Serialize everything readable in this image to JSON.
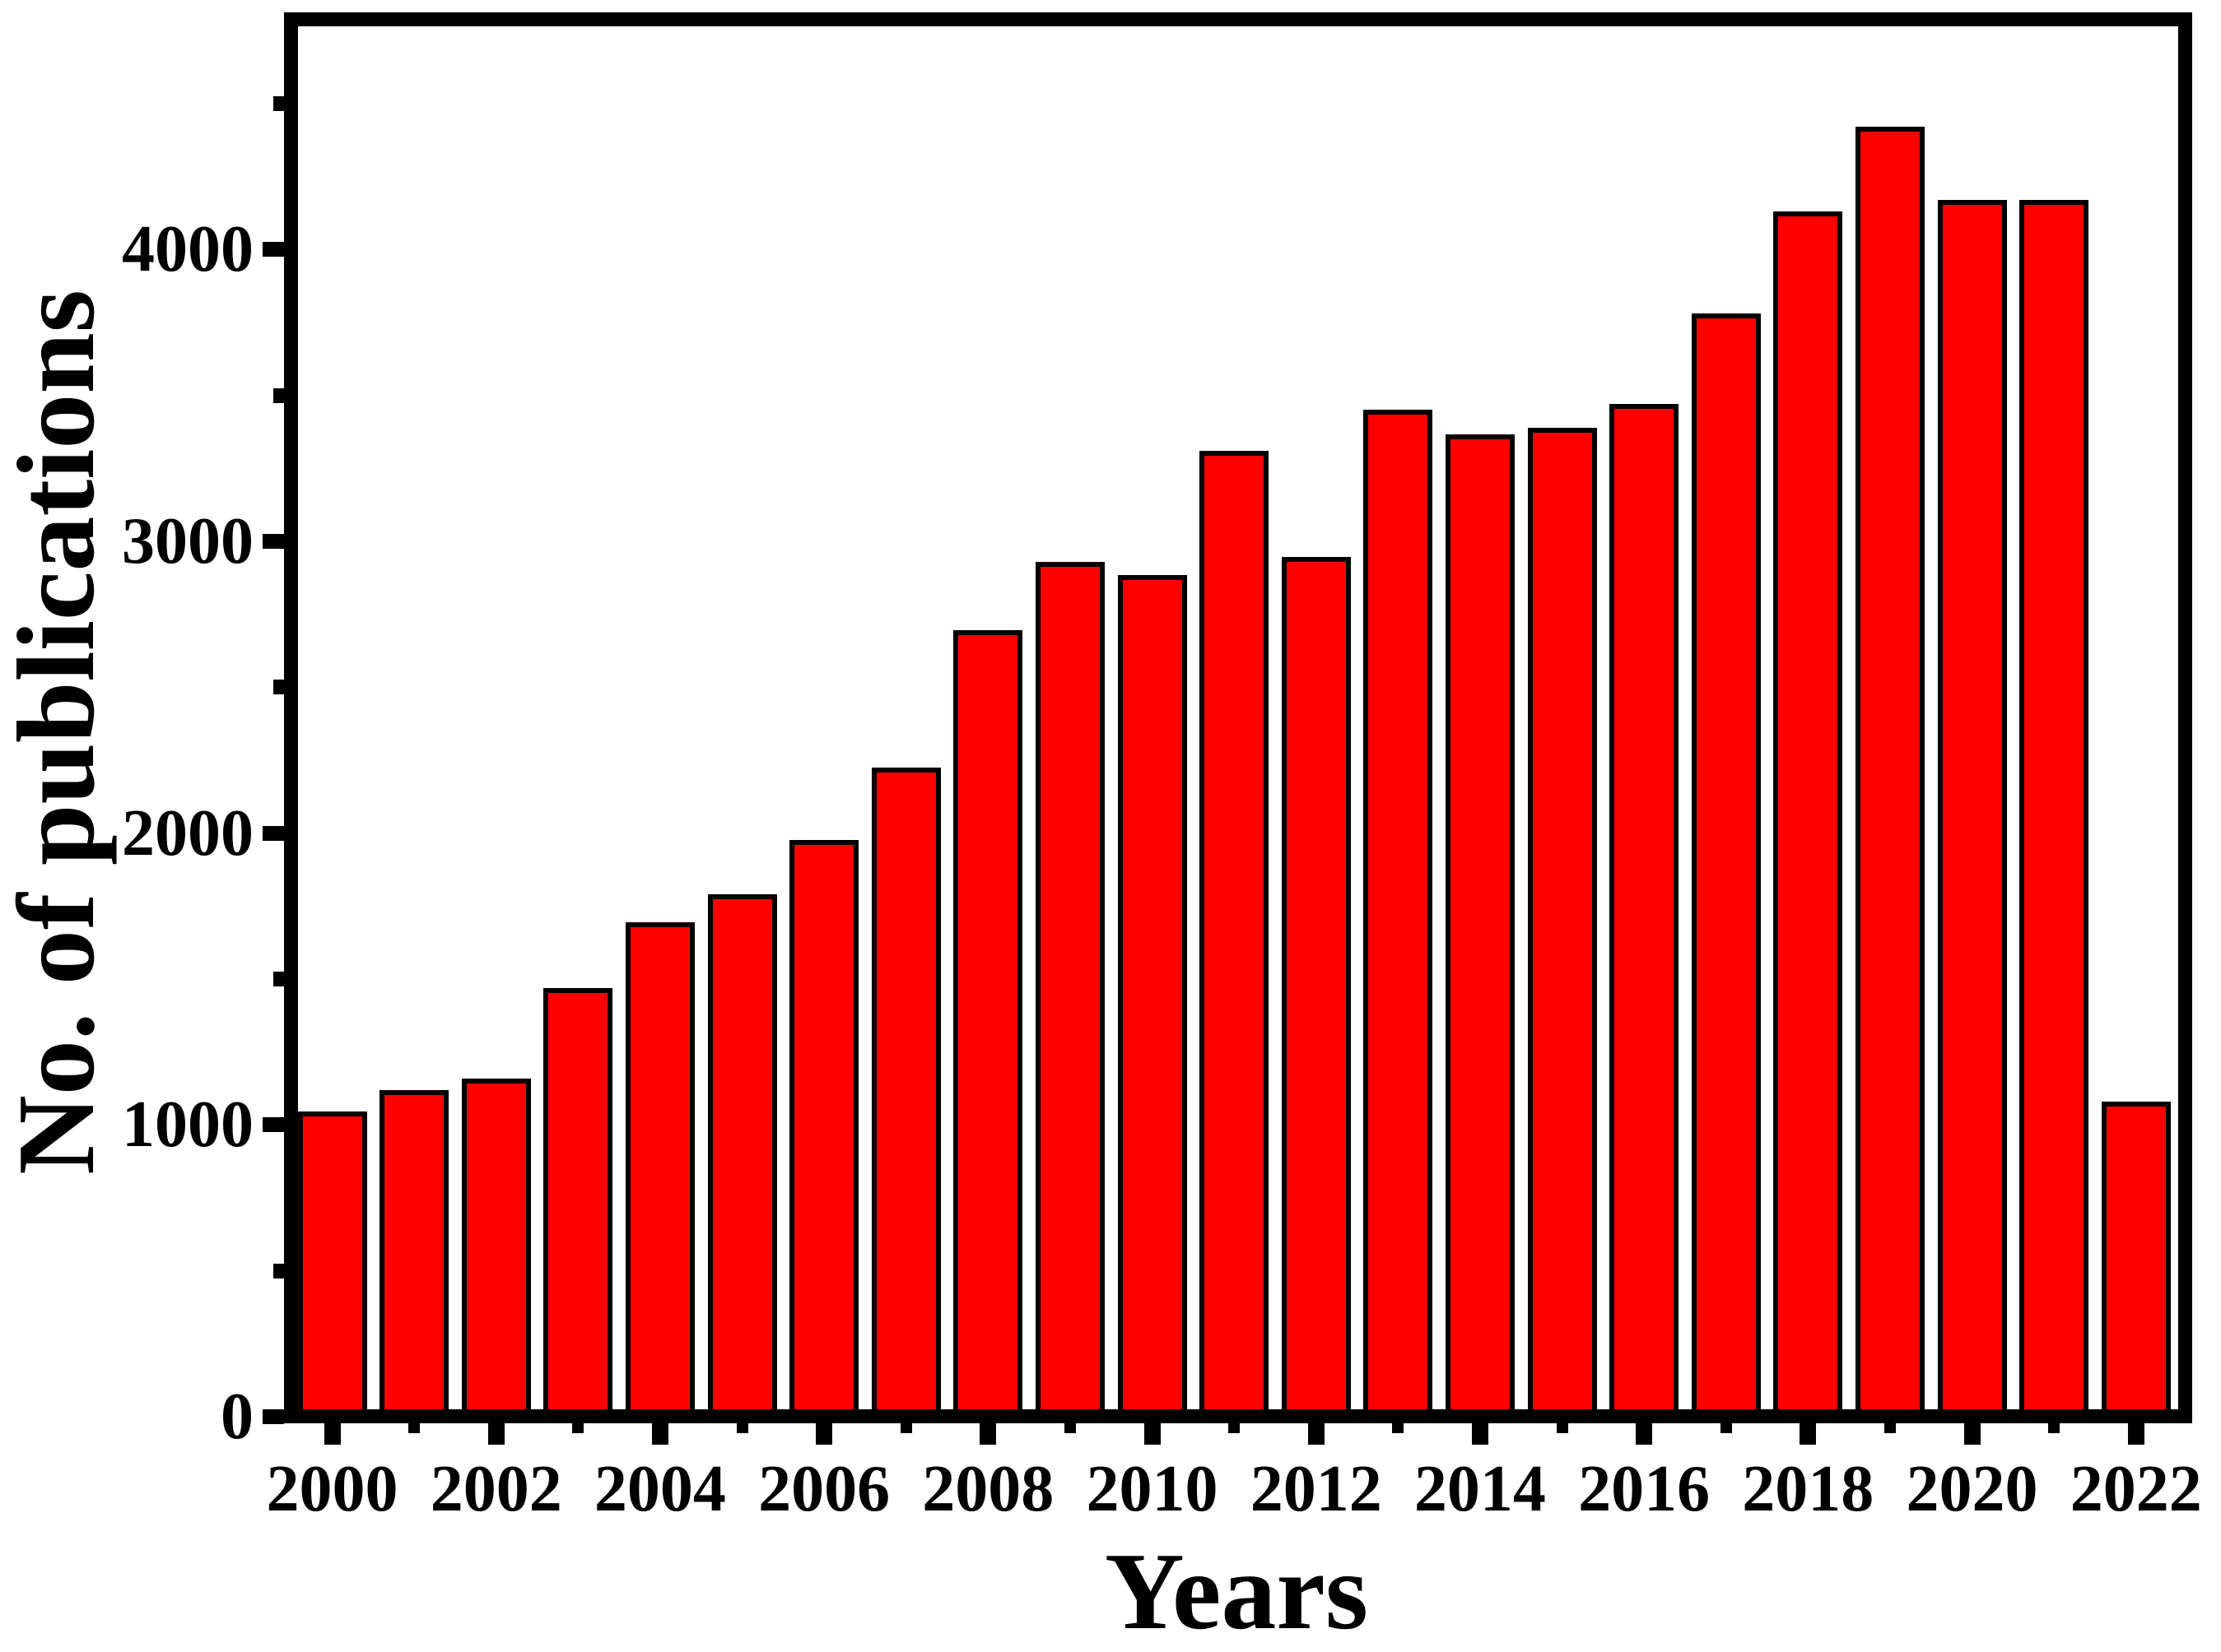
{
  "page": {
    "background_color": "#ffffff",
    "text_color": "#000000"
  },
  "chart_data": {
    "type": "bar",
    "title": "",
    "xlabel": "Years",
    "ylabel": "No. of publications",
    "categories": [
      2000,
      2001,
      2002,
      2003,
      2004,
      2005,
      2006,
      2007,
      2008,
      2009,
      2010,
      2011,
      2012,
      2013,
      2014,
      2015,
      2016,
      2017,
      2018,
      2019,
      2020,
      2021,
      2022
    ],
    "values": [
      1045,
      1120,
      1160,
      1470,
      1695,
      1790,
      1975,
      2225,
      2695,
      2930,
      2885,
      3310,
      2945,
      3450,
      3365,
      3390,
      3470,
      3780,
      4130,
      4420,
      4170,
      4170,
      1080
    ],
    "ylim": [
      0,
      4765
    ],
    "y_major_ticks": [
      0,
      1000,
      2000,
      3000,
      4000
    ],
    "y_tick_labels": [
      "0",
      "1000",
      "2000",
      "3000",
      "4000"
    ],
    "y_minor_ticks": [
      500,
      1500,
      2500,
      3500,
      4500
    ],
    "x_tick_labels": [
      "2000",
      "2002",
      "2004",
      "2006",
      "2008",
      "2010",
      "2012",
      "2014",
      "2016",
      "2018",
      "2020",
      "2022"
    ],
    "x_labels_every": 2,
    "bar_fill_color": "#ff0000",
    "bar_border_color": "#000000",
    "axis_color": "#000000",
    "grid": false,
    "legend": "none"
  }
}
